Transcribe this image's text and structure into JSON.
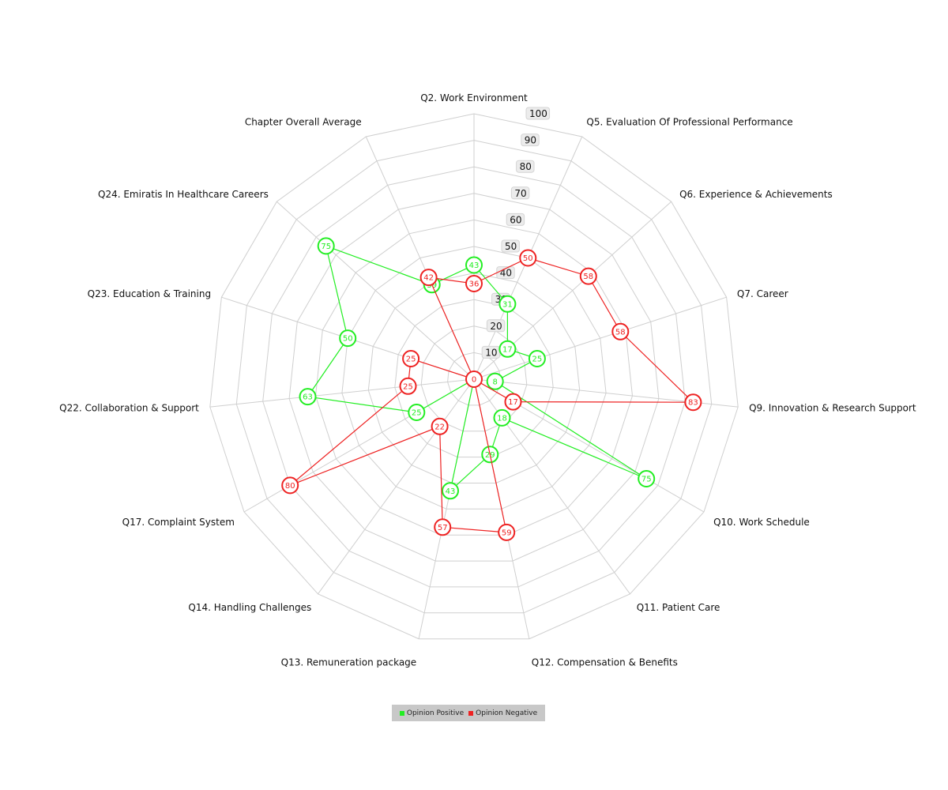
{
  "chart_data": {
    "type": "radar",
    "axes": [
      "Q2. Work Environment",
      "Q5. Evaluation Of Professional Performance",
      "Q6. Experience & Achievements",
      "Q7. Career",
      "Q9. Innovation & Research Support",
      "Q10. Work Schedule",
      "Q11. Patient Care",
      "Q12. Compensation & Benefits",
      "Q13. Remuneration package",
      "Q14. Handling Challenges",
      "Q17. Complaint System",
      "Q22. Collaboration & Support",
      "Q23. Education & Training",
      "Q24. Emiratis In Healthcare Careers",
      "Chapter Overall Average"
    ],
    "ticks": [
      10,
      20,
      30,
      40,
      50,
      60,
      70,
      80,
      90,
      100
    ],
    "rmax": 100,
    "series": [
      {
        "name": "Opinion Positive",
        "color": "#22ee22",
        "values": [
          43,
          31,
          17,
          25,
          8,
          75,
          18,
          29,
          43,
          0,
          25,
          63,
          50,
          75,
          39
        ],
        "labels": [
          "43",
          "31",
          "17",
          "25",
          "8",
          "75",
          "18",
          "29",
          "43",
          "",
          "25",
          "63",
          "50",
          "75",
          "39"
        ]
      },
      {
        "name": "Opinion Negative",
        "color": "#ee2222",
        "values": [
          36,
          50,
          58,
          58,
          83,
          17,
          0,
          59,
          57,
          22,
          80,
          25,
          25,
          0,
          42
        ],
        "labels": [
          "36",
          "50",
          "58",
          "58",
          "83",
          "17",
          "",
          "59",
          "57",
          "22",
          "80",
          "25",
          "25",
          "0",
          "42"
        ]
      }
    ],
    "legend": [
      {
        "label": "Opinion Positive",
        "color": "#22ee22"
      },
      {
        "label": "Opinion Negative",
        "color": "#ee2222"
      }
    ]
  }
}
